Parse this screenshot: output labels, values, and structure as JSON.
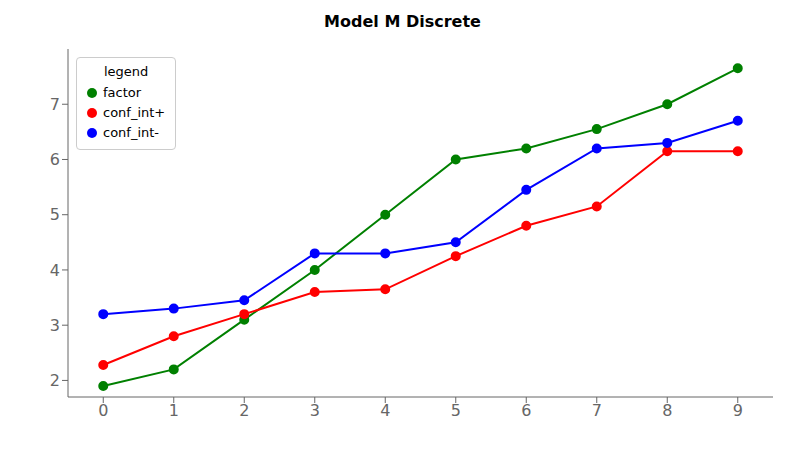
{
  "chart_data": {
    "type": "line",
    "title": "Model M Discrete",
    "x": [
      0,
      1,
      2,
      3,
      4,
      5,
      6,
      7,
      8,
      9
    ],
    "series": [
      {
        "name": "factor",
        "color": "green",
        "marker": "circle",
        "values": [
          1.9,
          2.2,
          3.1,
          4.0,
          5.0,
          6.0,
          6.2,
          6.55,
          7.0,
          7.65
        ]
      },
      {
        "name": "conf_int+",
        "color": "red",
        "marker": "circle",
        "values": [
          2.28,
          2.8,
          3.2,
          3.6,
          3.65,
          4.25,
          4.8,
          5.15,
          6.15,
          6.15
        ]
      },
      {
        "name": "conf_int-",
        "color": "blue",
        "marker": "circle",
        "values": [
          3.2,
          3.3,
          3.45,
          4.3,
          4.3,
          4.5,
          5.45,
          6.2,
          6.3,
          6.7
        ]
      }
    ],
    "xlim": [
      -0.5,
      9.5
    ],
    "xticks": [
      0,
      1,
      2,
      3,
      4,
      5,
      6,
      7,
      8,
      9
    ],
    "ylim": [
      1.7,
      8.0
    ],
    "yticks": [
      2,
      3,
      4,
      5,
      6,
      7
    ],
    "grid": false,
    "legend": "upper left",
    "legend_title": "legend"
  }
}
